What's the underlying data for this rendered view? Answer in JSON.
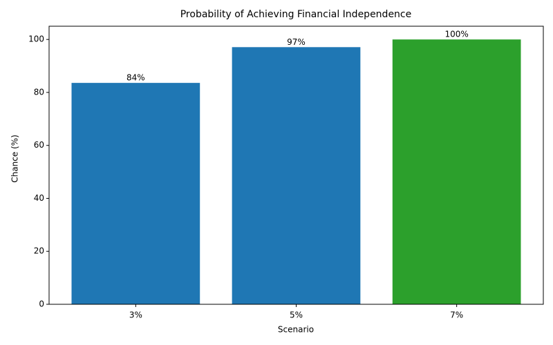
{
  "chart_data": {
    "type": "bar",
    "title": "Probability of Achieving Financial Independence",
    "x_label": "Scenario",
    "y_label": "Chance (%)",
    "categories": [
      "3%",
      "5%",
      "7%"
    ],
    "values": [
      83.6,
      97.1,
      100
    ],
    "value_labels": [
      "84%",
      "97%",
      "100%"
    ],
    "colors": [
      "#1f77b4",
      "#1f77b4",
      "#2ca02c"
    ],
    "ylim": [
      0,
      105
    ],
    "yticks": [
      0,
      20,
      40,
      60,
      80,
      100
    ],
    "grid": false
  }
}
